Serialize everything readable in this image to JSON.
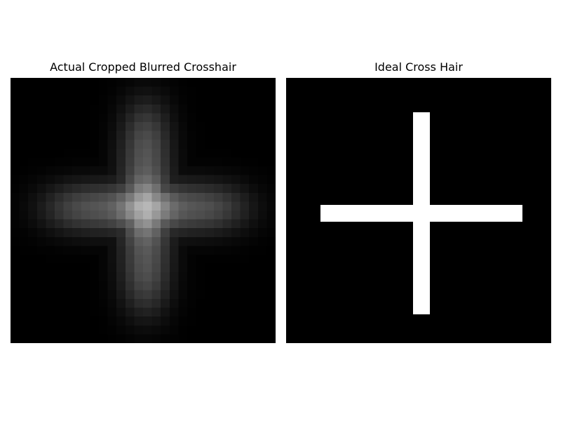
{
  "figure": {
    "background_color": "#ffffff",
    "panels": [
      {
        "id": "blurred",
        "title": "Actual Cropped Blurred Crosshair",
        "image": {
          "description_type": "blurred-crosshair",
          "background_color": "#000000",
          "foreground_color": "#ffffff"
        }
      },
      {
        "id": "ideal",
        "title": "Ideal Cross Hair",
        "image": {
          "description_type": "ideal-crosshair",
          "background_color": "#000000",
          "foreground_color": "#ffffff"
        }
      }
    ]
  }
}
